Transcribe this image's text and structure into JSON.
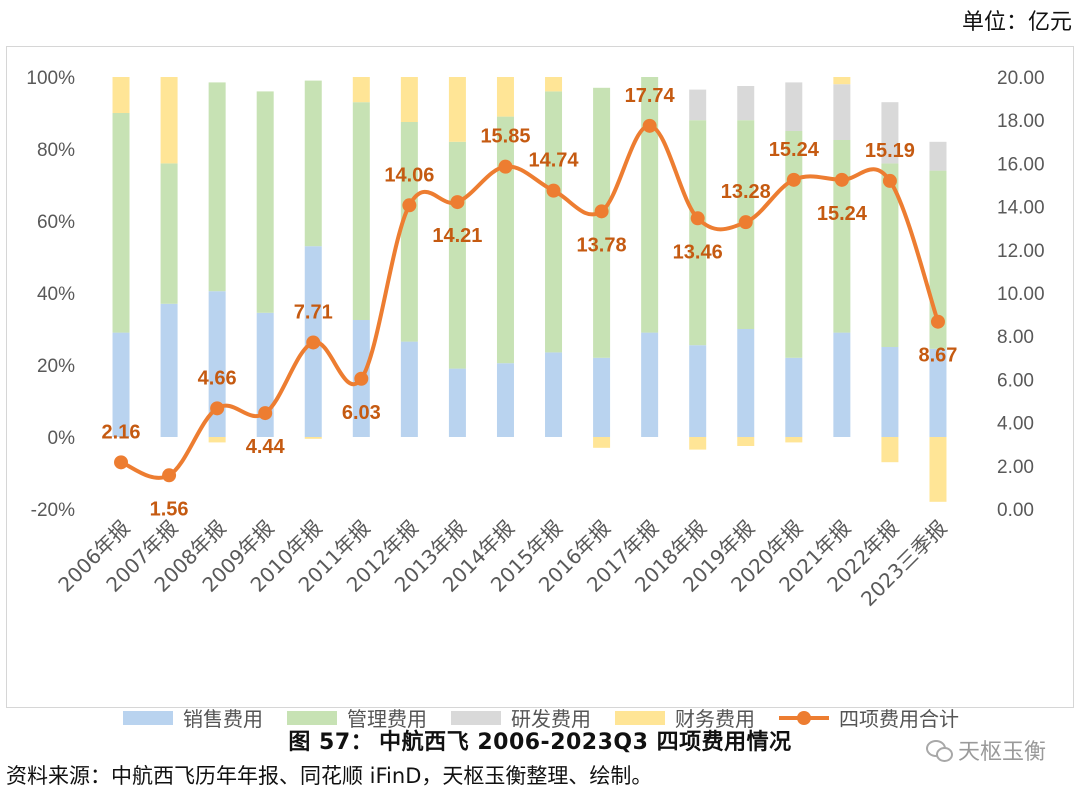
{
  "unit_label": "单位：亿元",
  "caption": {
    "figure": "图  57：",
    "title": "中航西飞 2006-2023Q3 四项费用情况"
  },
  "source": "资料来源：中航西飞历年年报、同花顺 iFinD，天枢玉衡整理、绘制。",
  "watermark": "天枢玉衡",
  "colors": {
    "sales": "#b9d3ef",
    "admin": "#c7e2b4",
    "rd": "#d9d9d9",
    "finance": "#ffe596",
    "total": "#ed7d31"
  },
  "chart_data": {
    "type": "bar",
    "stacked": true,
    "categories": [
      "2006年报",
      "2007年报",
      "2008年报",
      "2009年报",
      "2010年报",
      "2011年报",
      "2012年报",
      "2013年报",
      "2014年报",
      "2015年报",
      "2016年报",
      "2017年报",
      "2018年报",
      "2019年报",
      "2020年报",
      "2021年报",
      "2022年报",
      "2023三季报"
    ],
    "y_left": {
      "min": -20,
      "max": 100,
      "step": 20,
      "format": "percent",
      "ticks": [
        "100%",
        "80%",
        "60%",
        "40%",
        "20%",
        "0%",
        "-20%"
      ]
    },
    "y_right": {
      "min": 0,
      "max": 20,
      "step": 2,
      "ticks": [
        "20.00",
        "18.00",
        "16.00",
        "14.00",
        "12.00",
        "10.00",
        "8.00",
        "6.00",
        "4.00",
        "2.00",
        "0.00"
      ]
    },
    "series": [
      {
        "name": "销售费用",
        "type": "bar",
        "axis": "left",
        "values": [
          29,
          37,
          40.5,
          34.5,
          53,
          32.5,
          26.5,
          19,
          20.5,
          23.5,
          22,
          29,
          25.5,
          30,
          22,
          29,
          25,
          24.5
        ]
      },
      {
        "name": "管理费用",
        "type": "bar",
        "axis": "left",
        "values": [
          61,
          39,
          58,
          61.5,
          46,
          60.5,
          61,
          63,
          68.5,
          72.5,
          75,
          71,
          62.5,
          58,
          63,
          53.5,
          51,
          49.5
        ]
      },
      {
        "name": "研发费用",
        "type": "bar",
        "axis": "left",
        "values": [
          0,
          0,
          0,
          0,
          0,
          0,
          0,
          0,
          0,
          0,
          0,
          0,
          8.5,
          9.5,
          13.5,
          15.5,
          17,
          8
        ]
      },
      {
        "name": "财务费用",
        "type": "bar",
        "axis": "left",
        "values": [
          10,
          24,
          -1.5,
          0,
          -0.5,
          7,
          12.5,
          18,
          11,
          4,
          -3,
          0,
          -3.5,
          -2.5,
          -1.5,
          2,
          -7,
          -18
        ]
      },
      {
        "name": "四项费用合计",
        "type": "line",
        "axis": "right",
        "values": [
          2.16,
          1.56,
          4.66,
          4.44,
          7.71,
          6.03,
          14.06,
          14.21,
          15.85,
          14.74,
          13.78,
          17.74,
          13.46,
          13.28,
          15.24,
          15.24,
          15.19,
          8.67
        ],
        "labels": [
          "2.16",
          "1.56",
          "4.66",
          "4.44",
          "7.71",
          "6.03",
          "14.06",
          "14.21",
          "15.85",
          "14.74",
          "13.78",
          "17.74",
          "13.46",
          "13.28",
          "15.24",
          "15.24",
          "15.19",
          "8.67"
        ]
      }
    ],
    "legend": [
      "销售费用",
      "管理费用",
      "研发费用",
      "财务费用",
      "四项费用合计"
    ],
    "legend_position": "bottom"
  }
}
